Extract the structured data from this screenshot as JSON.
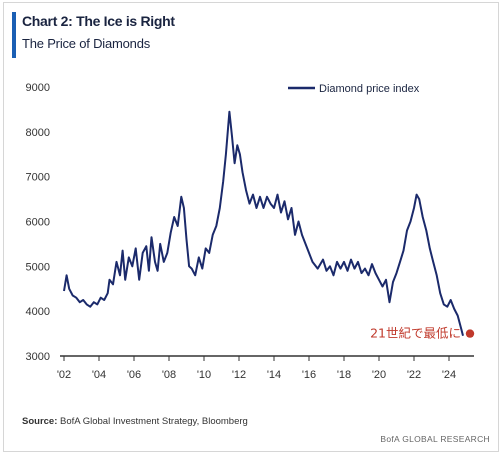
{
  "header": {
    "title": "Chart 2: The Ice is Right",
    "subtitle": "The Price of Diamonds"
  },
  "footer": {
    "source_label": "Source:",
    "source_text": " BofA Global Investment Strategy, Bloomberg",
    "credit": "BofA GLOBAL RESEARCH"
  },
  "annotation": {
    "text": "21世紀で最低に",
    "color": "#c0392b"
  },
  "colors": {
    "line": "#1b2a6b",
    "accent": "#1a5fb4",
    "axis": "#333333",
    "marker": "#c0392b"
  },
  "chart_data": {
    "type": "line",
    "title": "Chart 2: The Ice is Right",
    "subtitle": "The Price of Diamonds",
    "xlabel": "",
    "ylabel": "",
    "ylim": [
      3000,
      9000
    ],
    "xlim": [
      2002,
      2025.2
    ],
    "yticks": [
      3000,
      4000,
      5000,
      6000,
      7000,
      8000,
      9000
    ],
    "xticks": [
      {
        "value": 2002,
        "label": "'02"
      },
      {
        "value": 2004,
        "label": "'04"
      },
      {
        "value": 2006,
        "label": "'06"
      },
      {
        "value": 2008,
        "label": "'08"
      },
      {
        "value": 2010,
        "label": "'10"
      },
      {
        "value": 2012,
        "label": "'12"
      },
      {
        "value": 2014,
        "label": "'14"
      },
      {
        "value": 2016,
        "label": "'16"
      },
      {
        "value": 2018,
        "label": "'18"
      },
      {
        "value": 2020,
        "label": "'20"
      },
      {
        "value": 2022,
        "label": "'22"
      },
      {
        "value": 2024,
        "label": "'24"
      }
    ],
    "grid": false,
    "legend": "top-right",
    "series": [
      {
        "name": "Diamond price index",
        "points": [
          [
            2002.0,
            4450
          ],
          [
            2002.15,
            4800
          ],
          [
            2002.3,
            4500
          ],
          [
            2002.5,
            4350
          ],
          [
            2002.7,
            4300
          ],
          [
            2002.9,
            4200
          ],
          [
            2003.1,
            4250
          ],
          [
            2003.3,
            4150
          ],
          [
            2003.5,
            4100
          ],
          [
            2003.7,
            4200
          ],
          [
            2003.9,
            4150
          ],
          [
            2004.1,
            4300
          ],
          [
            2004.3,
            4250
          ],
          [
            2004.5,
            4400
          ],
          [
            2004.6,
            4700
          ],
          [
            2004.8,
            4600
          ],
          [
            2005.0,
            5100
          ],
          [
            2005.2,
            4800
          ],
          [
            2005.35,
            5350
          ],
          [
            2005.5,
            4700
          ],
          [
            2005.7,
            5200
          ],
          [
            2005.9,
            5000
          ],
          [
            2006.1,
            5400
          ],
          [
            2006.3,
            4700
          ],
          [
            2006.5,
            5300
          ],
          [
            2006.7,
            5450
          ],
          [
            2006.85,
            4900
          ],
          [
            2007.0,
            5650
          ],
          [
            2007.2,
            5100
          ],
          [
            2007.35,
            4900
          ],
          [
            2007.5,
            5500
          ],
          [
            2007.7,
            5100
          ],
          [
            2007.9,
            5300
          ],
          [
            2008.1,
            5750
          ],
          [
            2008.3,
            6100
          ],
          [
            2008.5,
            5900
          ],
          [
            2008.7,
            6550
          ],
          [
            2008.85,
            6300
          ],
          [
            2009.0,
            5600
          ],
          [
            2009.15,
            5000
          ],
          [
            2009.3,
            4950
          ],
          [
            2009.5,
            4800
          ],
          [
            2009.7,
            5200
          ],
          [
            2009.9,
            4950
          ],
          [
            2010.1,
            5400
          ],
          [
            2010.3,
            5300
          ],
          [
            2010.5,
            5700
          ],
          [
            2010.7,
            5900
          ],
          [
            2010.9,
            6300
          ],
          [
            2011.1,
            6900
          ],
          [
            2011.25,
            7500
          ],
          [
            2011.45,
            8450
          ],
          [
            2011.6,
            7900
          ],
          [
            2011.75,
            7300
          ],
          [
            2011.9,
            7700
          ],
          [
            2012.05,
            7500
          ],
          [
            2012.2,
            7100
          ],
          [
            2012.4,
            6700
          ],
          [
            2012.6,
            6400
          ],
          [
            2012.8,
            6600
          ],
          [
            2013.0,
            6300
          ],
          [
            2013.2,
            6550
          ],
          [
            2013.4,
            6300
          ],
          [
            2013.6,
            6550
          ],
          [
            2013.8,
            6400
          ],
          [
            2014.0,
            6300
          ],
          [
            2014.2,
            6600
          ],
          [
            2014.4,
            6200
          ],
          [
            2014.6,
            6450
          ],
          [
            2014.8,
            6050
          ],
          [
            2015.0,
            6300
          ],
          [
            2015.2,
            5700
          ],
          [
            2015.4,
            6000
          ],
          [
            2015.6,
            5700
          ],
          [
            2015.8,
            5500
          ],
          [
            2016.0,
            5300
          ],
          [
            2016.2,
            5100
          ],
          [
            2016.5,
            4950
          ],
          [
            2016.8,
            5150
          ],
          [
            2017.0,
            4900
          ],
          [
            2017.2,
            5000
          ],
          [
            2017.4,
            4800
          ],
          [
            2017.6,
            5100
          ],
          [
            2017.8,
            4950
          ],
          [
            2018.0,
            5100
          ],
          [
            2018.2,
            4900
          ],
          [
            2018.4,
            5150
          ],
          [
            2018.6,
            4950
          ],
          [
            2018.8,
            5100
          ],
          [
            2019.0,
            4850
          ],
          [
            2019.2,
            4950
          ],
          [
            2019.4,
            4800
          ],
          [
            2019.6,
            5050
          ],
          [
            2019.8,
            4850
          ],
          [
            2020.0,
            4700
          ],
          [
            2020.2,
            4550
          ],
          [
            2020.4,
            4700
          ],
          [
            2020.6,
            4200
          ],
          [
            2020.8,
            4650
          ],
          [
            2021.0,
            4850
          ],
          [
            2021.2,
            5100
          ],
          [
            2021.4,
            5350
          ],
          [
            2021.6,
            5800
          ],
          [
            2021.8,
            6000
          ],
          [
            2022.0,
            6300
          ],
          [
            2022.15,
            6600
          ],
          [
            2022.3,
            6500
          ],
          [
            2022.5,
            6100
          ],
          [
            2022.7,
            5800
          ],
          [
            2022.9,
            5400
          ],
          [
            2023.1,
            5100
          ],
          [
            2023.3,
            4800
          ],
          [
            2023.5,
            4400
          ],
          [
            2023.7,
            4150
          ],
          [
            2023.9,
            4100
          ],
          [
            2024.1,
            4250
          ],
          [
            2024.3,
            4050
          ],
          [
            2024.5,
            3900
          ],
          [
            2024.7,
            3600
          ],
          [
            2024.8,
            3450
          ]
        ]
      }
    ],
    "annotations": [
      {
        "text": "21世紀で最低に",
        "x": 2025.2,
        "y": 3500
      }
    ]
  }
}
